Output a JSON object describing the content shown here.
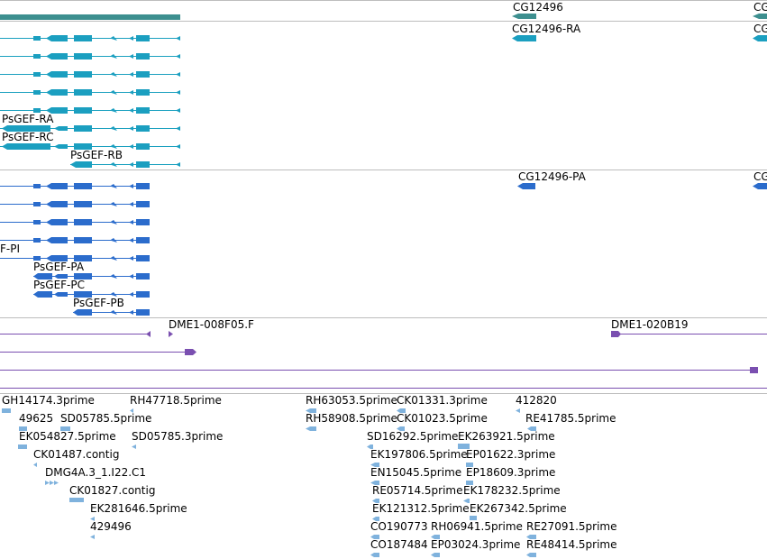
{
  "track_colors": {
    "gene": "#3d8f8f",
    "rna_line": "#1aa0bf",
    "rna_exon": "#1b9fc0",
    "protein": "#2b6ccc",
    "dme_line": "#7a4fb0",
    "dme_feature": "#7a4fb0",
    "est": "#7fb2dd",
    "separator": "#bdbdbd"
  },
  "gene_track": {
    "labels": [
      "CG12496",
      "CG"
    ]
  },
  "transcript_track": {
    "labels": [
      "CG12496-RA",
      "CG",
      "PsGEF-RA",
      "PsGEF-RC",
      "PsGEF-RB"
    ]
  },
  "protein_track": {
    "labels": [
      "CG12496-PA",
      "CG",
      "F-PI",
      "PsGEF-PA",
      "PsGEF-PC",
      "PsGEF-PB"
    ]
  },
  "dme_track": {
    "labels": [
      "DME1-008F05.F",
      "DME1-020B19"
    ]
  },
  "est_track": {
    "labels": [
      "GH14174.3prime",
      "RH47718.5prime",
      "RH63053.5prime",
      "CK01331.3prime",
      "412820",
      "49625",
      "SD05785.5prime",
      "RH58908.5prime",
      "CK01023.5prime",
      "RE41785.5prime",
      "EK054827.5prime",
      "SD05785.3prime",
      "SD16292.5prime",
      "EK263921.5prime",
      "CK01487.contig",
      "EK197806.5prime",
      "EP01622.3prime",
      "DMG4A.3_1.I22.C1",
      "EN15045.5prime",
      "EP18609.3prime",
      "CK01827.contig",
      "RE05714.5prime",
      "EK178232.5prime",
      "EK281646.5prime",
      "EK121312.5prime",
      "EK267342.5prime",
      "429496",
      "CO190773",
      "RH06941.5prime",
      "RE27091.5prime",
      "CO187484",
      "EP03024.3prime",
      "RE48414.5prime"
    ]
  }
}
